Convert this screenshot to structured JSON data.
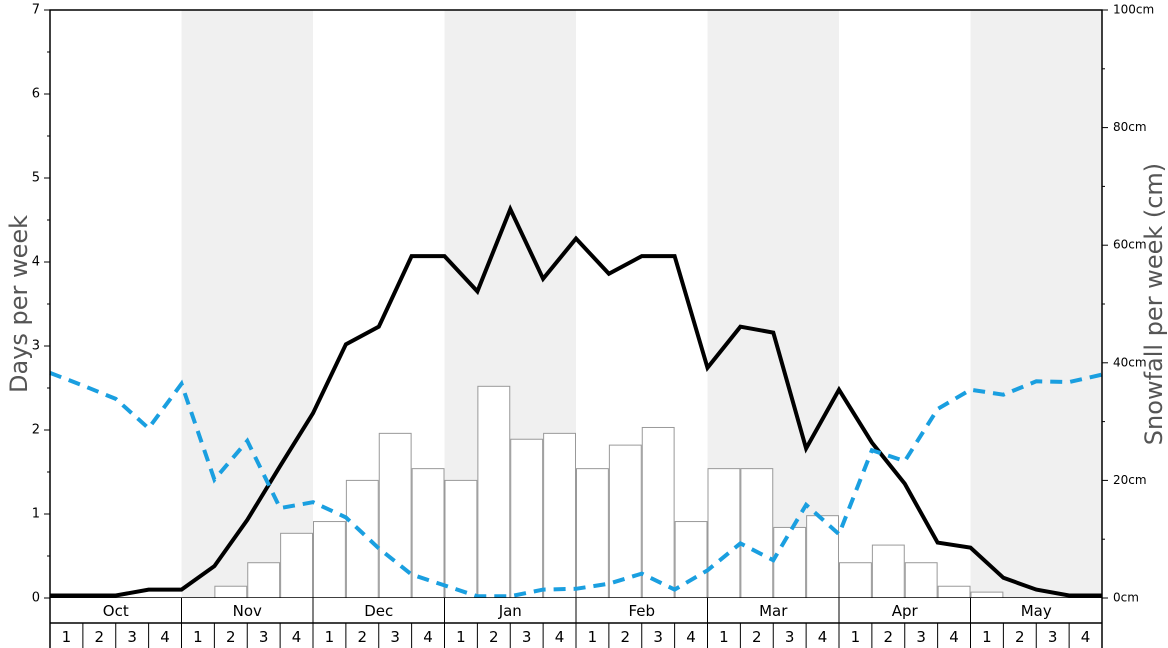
{
  "chart_data": {
    "type": "bar",
    "months": [
      "Oct",
      "Nov",
      "Dec",
      "Jan",
      "Feb",
      "Mar",
      "Apr",
      "May"
    ],
    "week_labels": [
      "1",
      "2",
      "3",
      "4"
    ],
    "ylabel": "Days per week",
    "ylabel_right": "Snowfall per week (cm)",
    "y_ticks": [
      "0",
      "1",
      "2",
      "3",
      "4",
      "5",
      "6",
      "7"
    ],
    "y_ticks_right": [
      "0cm",
      "20cm",
      "40cm",
      "60cm",
      "80cm",
      "100cm"
    ],
    "ylim": [
      0,
      7
    ],
    "ylim_right": [
      0,
      100
    ],
    "grid": false,
    "shaded_months": [
      "Nov",
      "Jan",
      "Mar",
      "May"
    ],
    "colors": {
      "bar_fill": "#ffffff",
      "bar_stroke": "#999999",
      "line_solid": "#000000",
      "line_dashed": "#1a9fe0",
      "band_shade": "#f0f0f0"
    },
    "series": [
      {
        "type": "bar",
        "axis": "right",
        "values": [
          0,
          0,
          0,
          0,
          0,
          2,
          6,
          11,
          13,
          20,
          28,
          22,
          20,
          36,
          27,
          28,
          22,
          26,
          29,
          13,
          22,
          22,
          12,
          14,
          6,
          9,
          6,
          2,
          1,
          0,
          0,
          0
        ]
      },
      {
        "type": "line",
        "style": "solid",
        "axis": "left",
        "values": [
          0.03,
          0.03,
          0.03,
          0.1,
          0.1,
          0.38,
          0.93,
          1.57,
          2.2,
          3.02,
          3.23,
          4.07,
          4.07,
          3.65,
          4.63,
          3.8,
          4.28,
          3.86,
          4.07,
          4.07,
          2.74,
          3.23,
          3.16,
          1.78,
          2.48,
          1.85,
          1.36,
          0.66,
          0.6,
          0.24,
          0.1,
          0.03,
          0.03
        ]
      },
      {
        "type": "line",
        "style": "dashed",
        "axis": "left",
        "values": [
          2.68,
          2.53,
          2.37,
          2.02,
          2.55,
          1.41,
          1.87,
          1.07,
          1.14,
          0.96,
          0.59,
          0.28,
          0.15,
          0.02,
          0.02,
          0.1,
          0.11,
          0.17,
          0.29,
          0.1,
          0.33,
          0.65,
          0.45,
          1.11,
          0.76,
          1.76,
          1.63,
          2.25,
          2.48,
          2.42,
          2.58,
          2.57,
          2.66
        ]
      }
    ]
  }
}
